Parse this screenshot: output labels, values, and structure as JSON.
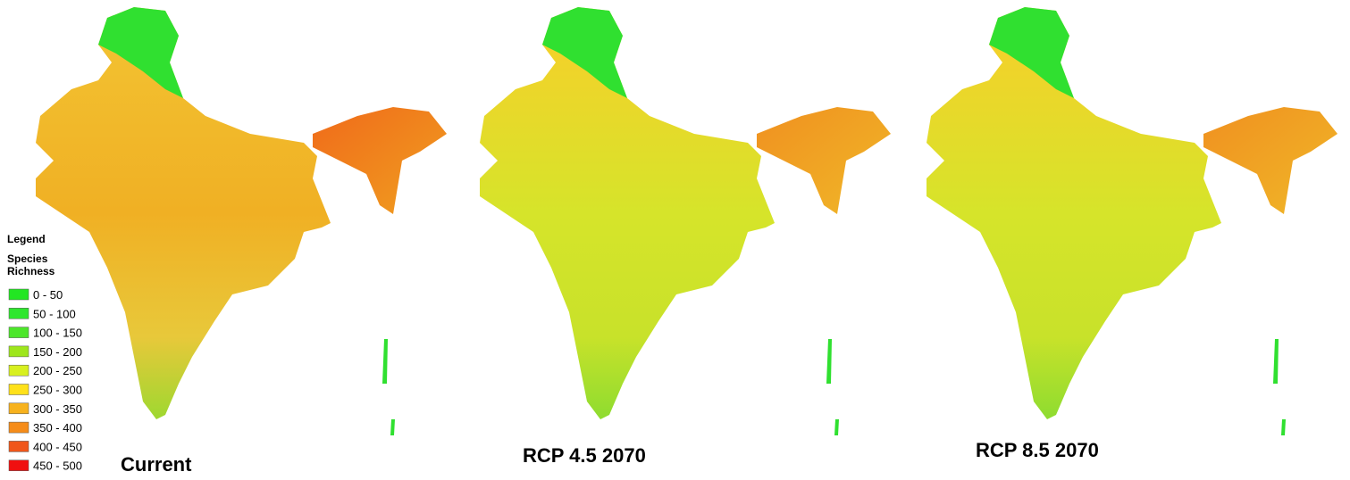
{
  "legend": {
    "title": "Legend",
    "subtitle": "Species\nRichness",
    "items": [
      {
        "label": "0 - 50",
        "color": "#22e622"
      },
      {
        "label": "50 - 100",
        "color": "#2ee62e"
      },
      {
        "label": "100 - 150",
        "color": "#4ce62a"
      },
      {
        "label": "150 - 200",
        "color": "#9ee61c"
      },
      {
        "label": "200 - 250",
        "color": "#d8f020"
      },
      {
        "label": "250 - 300",
        "color": "#ffe11a"
      },
      {
        "label": "300 - 350",
        "color": "#f7b21e"
      },
      {
        "label": "350 - 400",
        "color": "#f58c1a"
      },
      {
        "label": "400 - 450",
        "color": "#f0561a"
      },
      {
        "label": "450 - 500",
        "color": "#f01010"
      }
    ]
  },
  "panels": [
    {
      "title": "Current"
    },
    {
      "title": "RCP 4.5 2070"
    },
    {
      "title": "RCP 8.5 2070"
    }
  ]
}
